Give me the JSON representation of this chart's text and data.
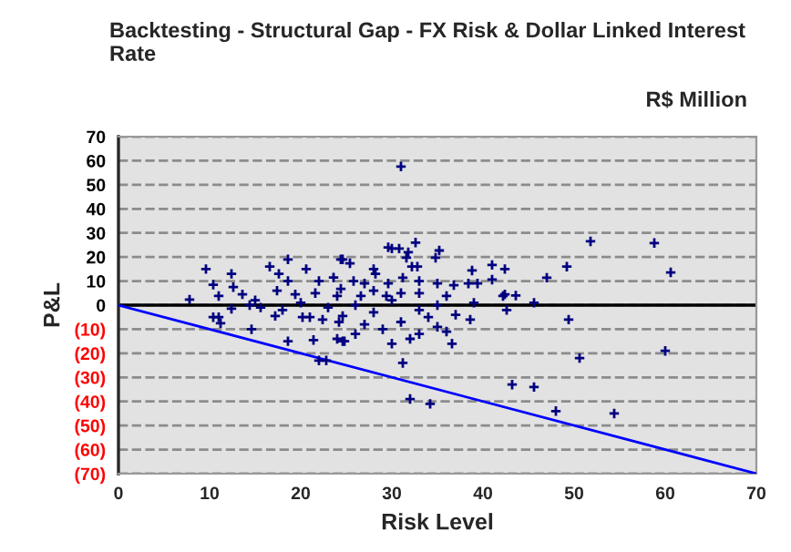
{
  "chart_data": {
    "type": "scatter",
    "title": "Backtesting - Structural Gap - FX Risk & Dollar Linked Interest Rate",
    "subtitle": "R$ Million",
    "xlabel": "Risk Level",
    "ylabel": "P&L",
    "xlim": [
      0,
      70
    ],
    "xticks": [
      0,
      10,
      20,
      30,
      40,
      50,
      60,
      70
    ],
    "ylim": [
      -70,
      70
    ],
    "yticks": [
      {
        "value": -70,
        "label": "(70)"
      },
      {
        "value": -60,
        "label": "(60)"
      },
      {
        "value": -50,
        "label": "(50)"
      },
      {
        "value": -40,
        "label": "(40)"
      },
      {
        "value": -30,
        "label": "(30)"
      },
      {
        "value": -20,
        "label": "(20)"
      },
      {
        "value": -10,
        "label": "(10)"
      },
      0,
      10,
      20,
      30,
      40,
      50,
      60,
      70
    ],
    "grid": "y",
    "legend": false,
    "ref_lines": [
      {
        "axis": "y",
        "value": 0,
        "color": "#000000",
        "line_style": "solid"
      }
    ],
    "series": [
      {
        "marker": "cross",
        "color": "#000080",
        "x": [
          31,
          51.8,
          58.8,
          49.2,
          47,
          60.6,
          49.4,
          50.6,
          60,
          43.2,
          45.6,
          48,
          54.4,
          31.2,
          32,
          34.2,
          36.6,
          42.6,
          24,
          24.8,
          38.6,
          45.6,
          42.4,
          43.6,
          10.4,
          11,
          11.2,
          14.6,
          18.6,
          21.4,
          22,
          22.8,
          24.6,
          17.2,
          20.2,
          21,
          22.4,
          24.2,
          12.4,
          7.8,
          14.4,
          15.6,
          24.6,
          9.6,
          12.4,
          10.4,
          12.6,
          11,
          13.6,
          16.6,
          17.6,
          18.6,
          20.6,
          18.6,
          22,
          23.6,
          24.6,
          17.4,
          19.4,
          21.6,
          29.6,
          30,
          30.8,
          31.8,
          32.6,
          31.6,
          34.8,
          35.2,
          24.4,
          25.4,
          28,
          28.2,
          32.8,
          32.2,
          38.8,
          41,
          42.4,
          41,
          25.8,
          27,
          29.6,
          31.2,
          33,
          35,
          36.8,
          38.4,
          39.4,
          42.2,
          36,
          33,
          31,
          29.4,
          26.6,
          24,
          24.4,
          15,
          18,
          20,
          23,
          26,
          28,
          30,
          33,
          35,
          37,
          39,
          27,
          29,
          31,
          33,
          35,
          26,
          30,
          34,
          36,
          28,
          32
        ],
        "values": [
          57.6,
          26.5,
          25.8,
          16,
          11.4,
          13.6,
          -6,
          -22,
          -19,
          -33,
          -34,
          -44,
          -45,
          -24,
          -39,
          -41,
          -16,
          -2,
          -14,
          -15,
          -6,
          1,
          4.5,
          4,
          -5,
          -5,
          -7.5,
          -10,
          -15,
          -14.5,
          -23,
          -23,
          -15,
          -4.5,
          -5,
          -5,
          -6,
          -7,
          -1.5,
          2.3,
          0,
          -1,
          -4.5,
          15,
          13,
          8.5,
          7.5,
          3.8,
          4.5,
          16,
          13,
          19,
          15,
          10,
          10,
          11.5,
          19,
          6,
          4.5,
          5,
          24,
          23.5,
          23.5,
          22,
          26,
          19.7,
          19.7,
          22.7,
          19,
          17.4,
          15,
          13,
          16,
          16,
          14.4,
          16.7,
          15,
          10.6,
          10,
          9,
          9,
          11.4,
          10,
          9,
          8.3,
          9,
          9,
          3.8,
          3.8,
          5,
          5,
          3.8,
          3.8,
          3.8,
          6.8,
          2,
          -2,
          1,
          -1,
          0,
          -3,
          2,
          -2,
          0,
          -4,
          1,
          -8,
          -10,
          -7,
          -12,
          -9,
          -12,
          -16,
          -5,
          -11,
          6,
          -14
        ]
      },
      {
        "type": "line",
        "marker": "none",
        "color": "#0000ff",
        "x": [
          0,
          70
        ],
        "values": [
          0,
          -70
        ]
      }
    ]
  }
}
